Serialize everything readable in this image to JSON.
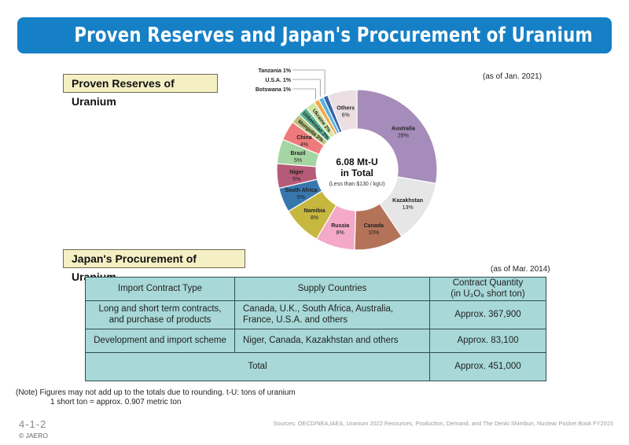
{
  "header": {
    "title": "Proven Reserves and Japan's Procurement of Uranium"
  },
  "reserves": {
    "section_label": "Proven Reserves of Uranium",
    "as_of": "(as of Jan. 2021)"
  },
  "chart_data": {
    "type": "pie",
    "title": "Proven Reserves of Uranium",
    "center_label": {
      "value": "6.08 Mt-U",
      "line2": "in Total",
      "sub": "(Less than $130 / kgU)"
    },
    "slices": [
      {
        "label": "Australia",
        "pct_text": "28%",
        "value": 28,
        "color": "#a68cba"
      },
      {
        "label": "Kazakhstan",
        "pct_text": "13%",
        "value": 13,
        "color": "#e6e6e6"
      },
      {
        "label": "Canada",
        "pct_text": "10%",
        "value": 10,
        "color": "#b47358"
      },
      {
        "label": "Russia",
        "pct_text": "8%",
        "value": 8,
        "color": "#f3a9c7"
      },
      {
        "label": "Namibia",
        "pct_text": "8%",
        "value": 8,
        "color": "#c6b83f"
      },
      {
        "label": "South Africa",
        "pct_text": "5%",
        "value": 5,
        "color": "#3777ad"
      },
      {
        "label": "Niger",
        "pct_text": "5%",
        "value": 5,
        "color": "#b65b77"
      },
      {
        "label": "Brazil",
        "pct_text": "5%",
        "value": 5,
        "color": "#a5d5a2"
      },
      {
        "label": "China",
        "pct_text": "4%",
        "value": 4,
        "color": "#ef7a7c"
      },
      {
        "label": "Mongolia",
        "pct_text": "2%",
        "value": 2,
        "color": "#b7c57f"
      },
      {
        "label": "Uzbekistan",
        "pct_text": "2%",
        "value": 2,
        "color": "#5db596"
      },
      {
        "label": "Ukraine",
        "pct_text": "2%",
        "value": 2,
        "color": "#d2e6a8"
      },
      {
        "label": "Botswana",
        "pct_text": "1%",
        "value": 1,
        "color": "#f2a94c"
      },
      {
        "label": "U.S.A.",
        "pct_text": "1%",
        "value": 1,
        "color": "#59b2e0"
      },
      {
        "label": "Tanzania",
        "pct_text": "1%",
        "value": 1,
        "color": "#3564a8"
      },
      {
        "label": "Others",
        "pct_text": "6%",
        "value": 6,
        "color": "#ebdfe4"
      }
    ]
  },
  "procurement": {
    "section_label": "Japan's Procurement of Uranium",
    "as_of": "(as of Mar. 2014)",
    "columns": [
      "Import Contract Type",
      "Supply Countries",
      "Contract Quantity",
      "(in U₃O₈ short ton)"
    ],
    "rows": [
      {
        "type_l1": "Long and short term contracts,",
        "type_l2": "and purchase of products",
        "countries_l1": "Canada, U.K., South Africa, Australia,",
        "countries_l2": "France, U.S.A. and others",
        "quantity": "Approx. 367,900"
      },
      {
        "type_l1": "Development and import scheme",
        "countries_l1": "Niger, Canada, Kazakhstan and others",
        "quantity": "Approx. 83,100"
      }
    ],
    "total_label": "Total",
    "total_quantity": "Approx. 451,000"
  },
  "note": {
    "line1": "(Note) Figures may not add up to the totals due to rounding. t-U: tons of uranium",
    "line2": "1 short ton = approx. 0.907 metric ton"
  },
  "footer": {
    "figure_number": "4-1-2",
    "copyright": "© JAERO",
    "sources": "Sources: OECD/NEA,IAEA, Uranium 2022 Resources, Production, Demand, and The Denki Shimbun, Nuclear Pocket Book FY2015"
  }
}
